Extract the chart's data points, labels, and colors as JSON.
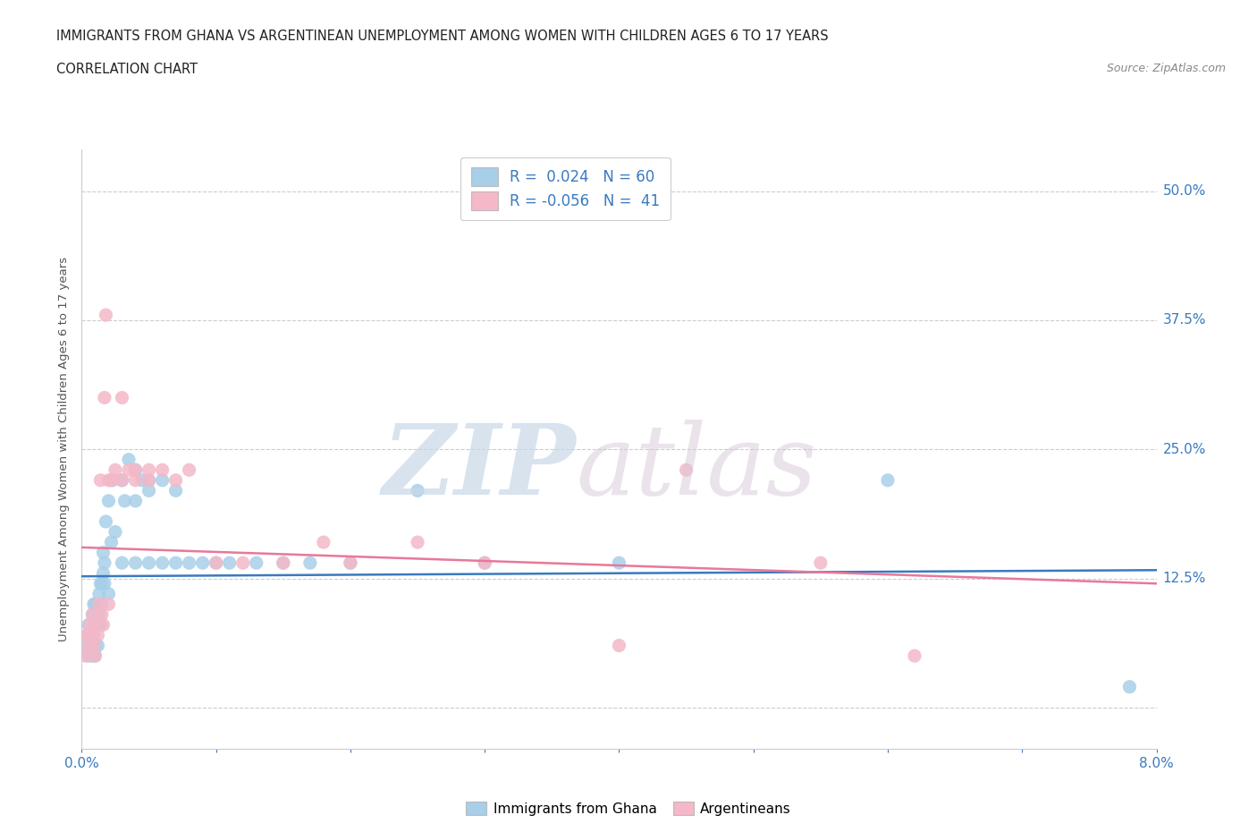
{
  "title_line1": "IMMIGRANTS FROM GHANA VS ARGENTINEAN UNEMPLOYMENT AMONG WOMEN WITH CHILDREN AGES 6 TO 17 YEARS",
  "title_line2": "CORRELATION CHART",
  "source_text": "Source: ZipAtlas.com",
  "xmin": 0.0,
  "xmax": 0.08,
  "ymin": -0.04,
  "ymax": 0.54,
  "ghana_color": "#a8cfe8",
  "argentina_color": "#f4b8c8",
  "ghana_line_color": "#3a7abf",
  "argentina_line_color": "#e8789a",
  "ghana_R": 0.024,
  "ghana_N": 60,
  "argentina_R": -0.056,
  "argentina_N": 41,
  "legend_label_ghana": "Immigrants from Ghana",
  "legend_label_argentina": "Argentineans",
  "ghana_x": [
    0.0003,
    0.0004,
    0.0005,
    0.0005,
    0.0006,
    0.0007,
    0.0008,
    0.0008,
    0.0009,
    0.0009,
    0.001,
    0.001,
    0.001,
    0.001,
    0.0012,
    0.0012,
    0.0013,
    0.0013,
    0.0014,
    0.0014,
    0.0015,
    0.0015,
    0.0016,
    0.0016,
    0.0017,
    0.0017,
    0.0018,
    0.002,
    0.002,
    0.0022,
    0.0023,
    0.0025,
    0.003,
    0.003,
    0.0032,
    0.0035,
    0.004,
    0.004,
    0.004,
    0.0045,
    0.005,
    0.005,
    0.005,
    0.006,
    0.006,
    0.007,
    0.007,
    0.008,
    0.009,
    0.01,
    0.011,
    0.013,
    0.015,
    0.017,
    0.02,
    0.025,
    0.03,
    0.04,
    0.06,
    0.078
  ],
  "ghana_y": [
    0.06,
    0.07,
    0.05,
    0.08,
    0.06,
    0.07,
    0.05,
    0.09,
    0.07,
    0.1,
    0.05,
    0.06,
    0.08,
    0.1,
    0.06,
    0.08,
    0.09,
    0.11,
    0.08,
    0.12,
    0.1,
    0.12,
    0.13,
    0.15,
    0.12,
    0.14,
    0.18,
    0.11,
    0.2,
    0.16,
    0.22,
    0.17,
    0.14,
    0.22,
    0.2,
    0.24,
    0.14,
    0.2,
    0.23,
    0.22,
    0.14,
    0.21,
    0.22,
    0.22,
    0.14,
    0.14,
    0.21,
    0.14,
    0.14,
    0.14,
    0.14,
    0.14,
    0.14,
    0.14,
    0.14,
    0.21,
    0.14,
    0.14,
    0.22,
    0.02
  ],
  "argentina_x": [
    0.0003,
    0.0004,
    0.0005,
    0.0006,
    0.0007,
    0.0008,
    0.0009,
    0.001,
    0.001,
    0.0012,
    0.0013,
    0.0014,
    0.0015,
    0.0016,
    0.0017,
    0.0018,
    0.002,
    0.002,
    0.0022,
    0.0025,
    0.003,
    0.003,
    0.0035,
    0.004,
    0.004,
    0.005,
    0.005,
    0.006,
    0.007,
    0.008,
    0.01,
    0.012,
    0.015,
    0.018,
    0.02,
    0.025,
    0.03,
    0.04,
    0.045,
    0.055,
    0.062
  ],
  "argentina_y": [
    0.05,
    0.07,
    0.06,
    0.08,
    0.07,
    0.09,
    0.06,
    0.05,
    0.08,
    0.07,
    0.1,
    0.22,
    0.09,
    0.08,
    0.3,
    0.38,
    0.22,
    0.1,
    0.22,
    0.23,
    0.22,
    0.3,
    0.23,
    0.22,
    0.23,
    0.23,
    0.22,
    0.23,
    0.22,
    0.23,
    0.14,
    0.14,
    0.14,
    0.16,
    0.14,
    0.16,
    0.14,
    0.06,
    0.23,
    0.14,
    0.05
  ]
}
